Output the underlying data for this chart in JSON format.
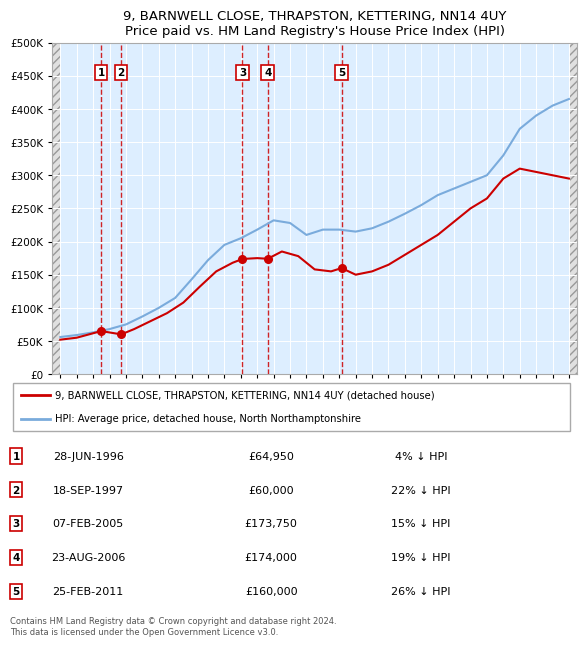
{
  "title": "9, BARNWELL CLOSE, THRAPSTON, KETTERING, NN14 4UY",
  "subtitle": "Price paid vs. HM Land Registry's House Price Index (HPI)",
  "legend_label_red": "9, BARNWELL CLOSE, THRAPSTON, KETTERING, NN14 4UY (detached house)",
  "legend_label_blue": "HPI: Average price, detached house, North Northamptonshire",
  "footer": "Contains HM Land Registry data © Crown copyright and database right 2024.\nThis data is licensed under the Open Government Licence v3.0.",
  "transactions": [
    {
      "num": 1,
      "date": "28-JUN-1996",
      "price": 64950,
      "hpi_diff": "4% ↓ HPI",
      "year": 1996.49
    },
    {
      "num": 2,
      "date": "18-SEP-1997",
      "price": 60000,
      "hpi_diff": "22% ↓ HPI",
      "year": 1997.71
    },
    {
      "num": 3,
      "date": "07-FEB-2005",
      "price": 173750,
      "hpi_diff": "15% ↓ HPI",
      "year": 2005.1
    },
    {
      "num": 4,
      "date": "23-AUG-2006",
      "price": 174000,
      "hpi_diff": "19% ↓ HPI",
      "year": 2006.64
    },
    {
      "num": 5,
      "date": "25-FEB-2011",
      "price": 160000,
      "hpi_diff": "26% ↓ HPI",
      "year": 2011.14
    }
  ],
  "hpi_line_color": "#7aabdc",
  "price_line_color": "#cc0000",
  "marker_color": "#cc0000",
  "dashed_line_color": "#cc0000",
  "background_color": "#ffffff",
  "plot_bg_color": "#ddeeff",
  "grid_color": "#ffffff",
  "ylim": [
    0,
    500000
  ],
  "yticks": [
    0,
    50000,
    100000,
    150000,
    200000,
    250000,
    300000,
    350000,
    400000,
    450000,
    500000
  ],
  "xlim_start": 1993.5,
  "xlim_end": 2025.5,
  "xticks": [
    1994,
    1995,
    1996,
    1997,
    1998,
    1999,
    2000,
    2001,
    2002,
    2003,
    2004,
    2005,
    2006,
    2007,
    2008,
    2009,
    2010,
    2011,
    2012,
    2013,
    2014,
    2015,
    2016,
    2017,
    2018,
    2019,
    2020,
    2021,
    2022,
    2023,
    2024,
    2025
  ],
  "hpi_data": [
    [
      1994.0,
      56000
    ],
    [
      1995.0,
      59000
    ],
    [
      1996.0,
      63000
    ],
    [
      1997.0,
      68000
    ],
    [
      1998.0,
      75000
    ],
    [
      1999.0,
      87000
    ],
    [
      2000.0,
      100000
    ],
    [
      2001.0,
      115000
    ],
    [
      2002.0,
      143000
    ],
    [
      2003.0,
      172000
    ],
    [
      2004.0,
      195000
    ],
    [
      2005.0,
      205000
    ],
    [
      2006.0,
      218000
    ],
    [
      2007.0,
      232000
    ],
    [
      2008.0,
      228000
    ],
    [
      2009.0,
      210000
    ],
    [
      2010.0,
      218000
    ],
    [
      2011.0,
      218000
    ],
    [
      2012.0,
      215000
    ],
    [
      2013.0,
      220000
    ],
    [
      2014.0,
      230000
    ],
    [
      2015.0,
      242000
    ],
    [
      2016.0,
      255000
    ],
    [
      2017.0,
      270000
    ],
    [
      2018.0,
      280000
    ],
    [
      2019.0,
      290000
    ],
    [
      2020.0,
      300000
    ],
    [
      2021.0,
      330000
    ],
    [
      2022.0,
      370000
    ],
    [
      2023.0,
      390000
    ],
    [
      2024.0,
      405000
    ],
    [
      2025.0,
      415000
    ]
  ],
  "red_data": [
    [
      1994.0,
      52000
    ],
    [
      1995.0,
      55000
    ],
    [
      1996.49,
      64950
    ],
    [
      1997.71,
      60000
    ],
    [
      1998.5,
      68000
    ],
    [
      1999.5,
      80000
    ],
    [
      2000.5,
      92000
    ],
    [
      2001.5,
      108000
    ],
    [
      2002.5,
      132000
    ],
    [
      2003.5,
      155000
    ],
    [
      2004.5,
      168000
    ],
    [
      2005.1,
      173750
    ],
    [
      2006.0,
      175000
    ],
    [
      2006.64,
      174000
    ],
    [
      2007.5,
      185000
    ],
    [
      2008.5,
      178000
    ],
    [
      2009.5,
      158000
    ],
    [
      2010.5,
      155000
    ],
    [
      2011.14,
      160000
    ],
    [
      2012.0,
      150000
    ],
    [
      2013.0,
      155000
    ],
    [
      2014.0,
      165000
    ],
    [
      2015.0,
      180000
    ],
    [
      2016.0,
      195000
    ],
    [
      2017.0,
      210000
    ],
    [
      2018.0,
      230000
    ],
    [
      2019.0,
      250000
    ],
    [
      2020.0,
      265000
    ],
    [
      2021.0,
      295000
    ],
    [
      2022.0,
      310000
    ],
    [
      2023.0,
      305000
    ],
    [
      2024.0,
      300000
    ],
    [
      2025.0,
      295000
    ]
  ]
}
